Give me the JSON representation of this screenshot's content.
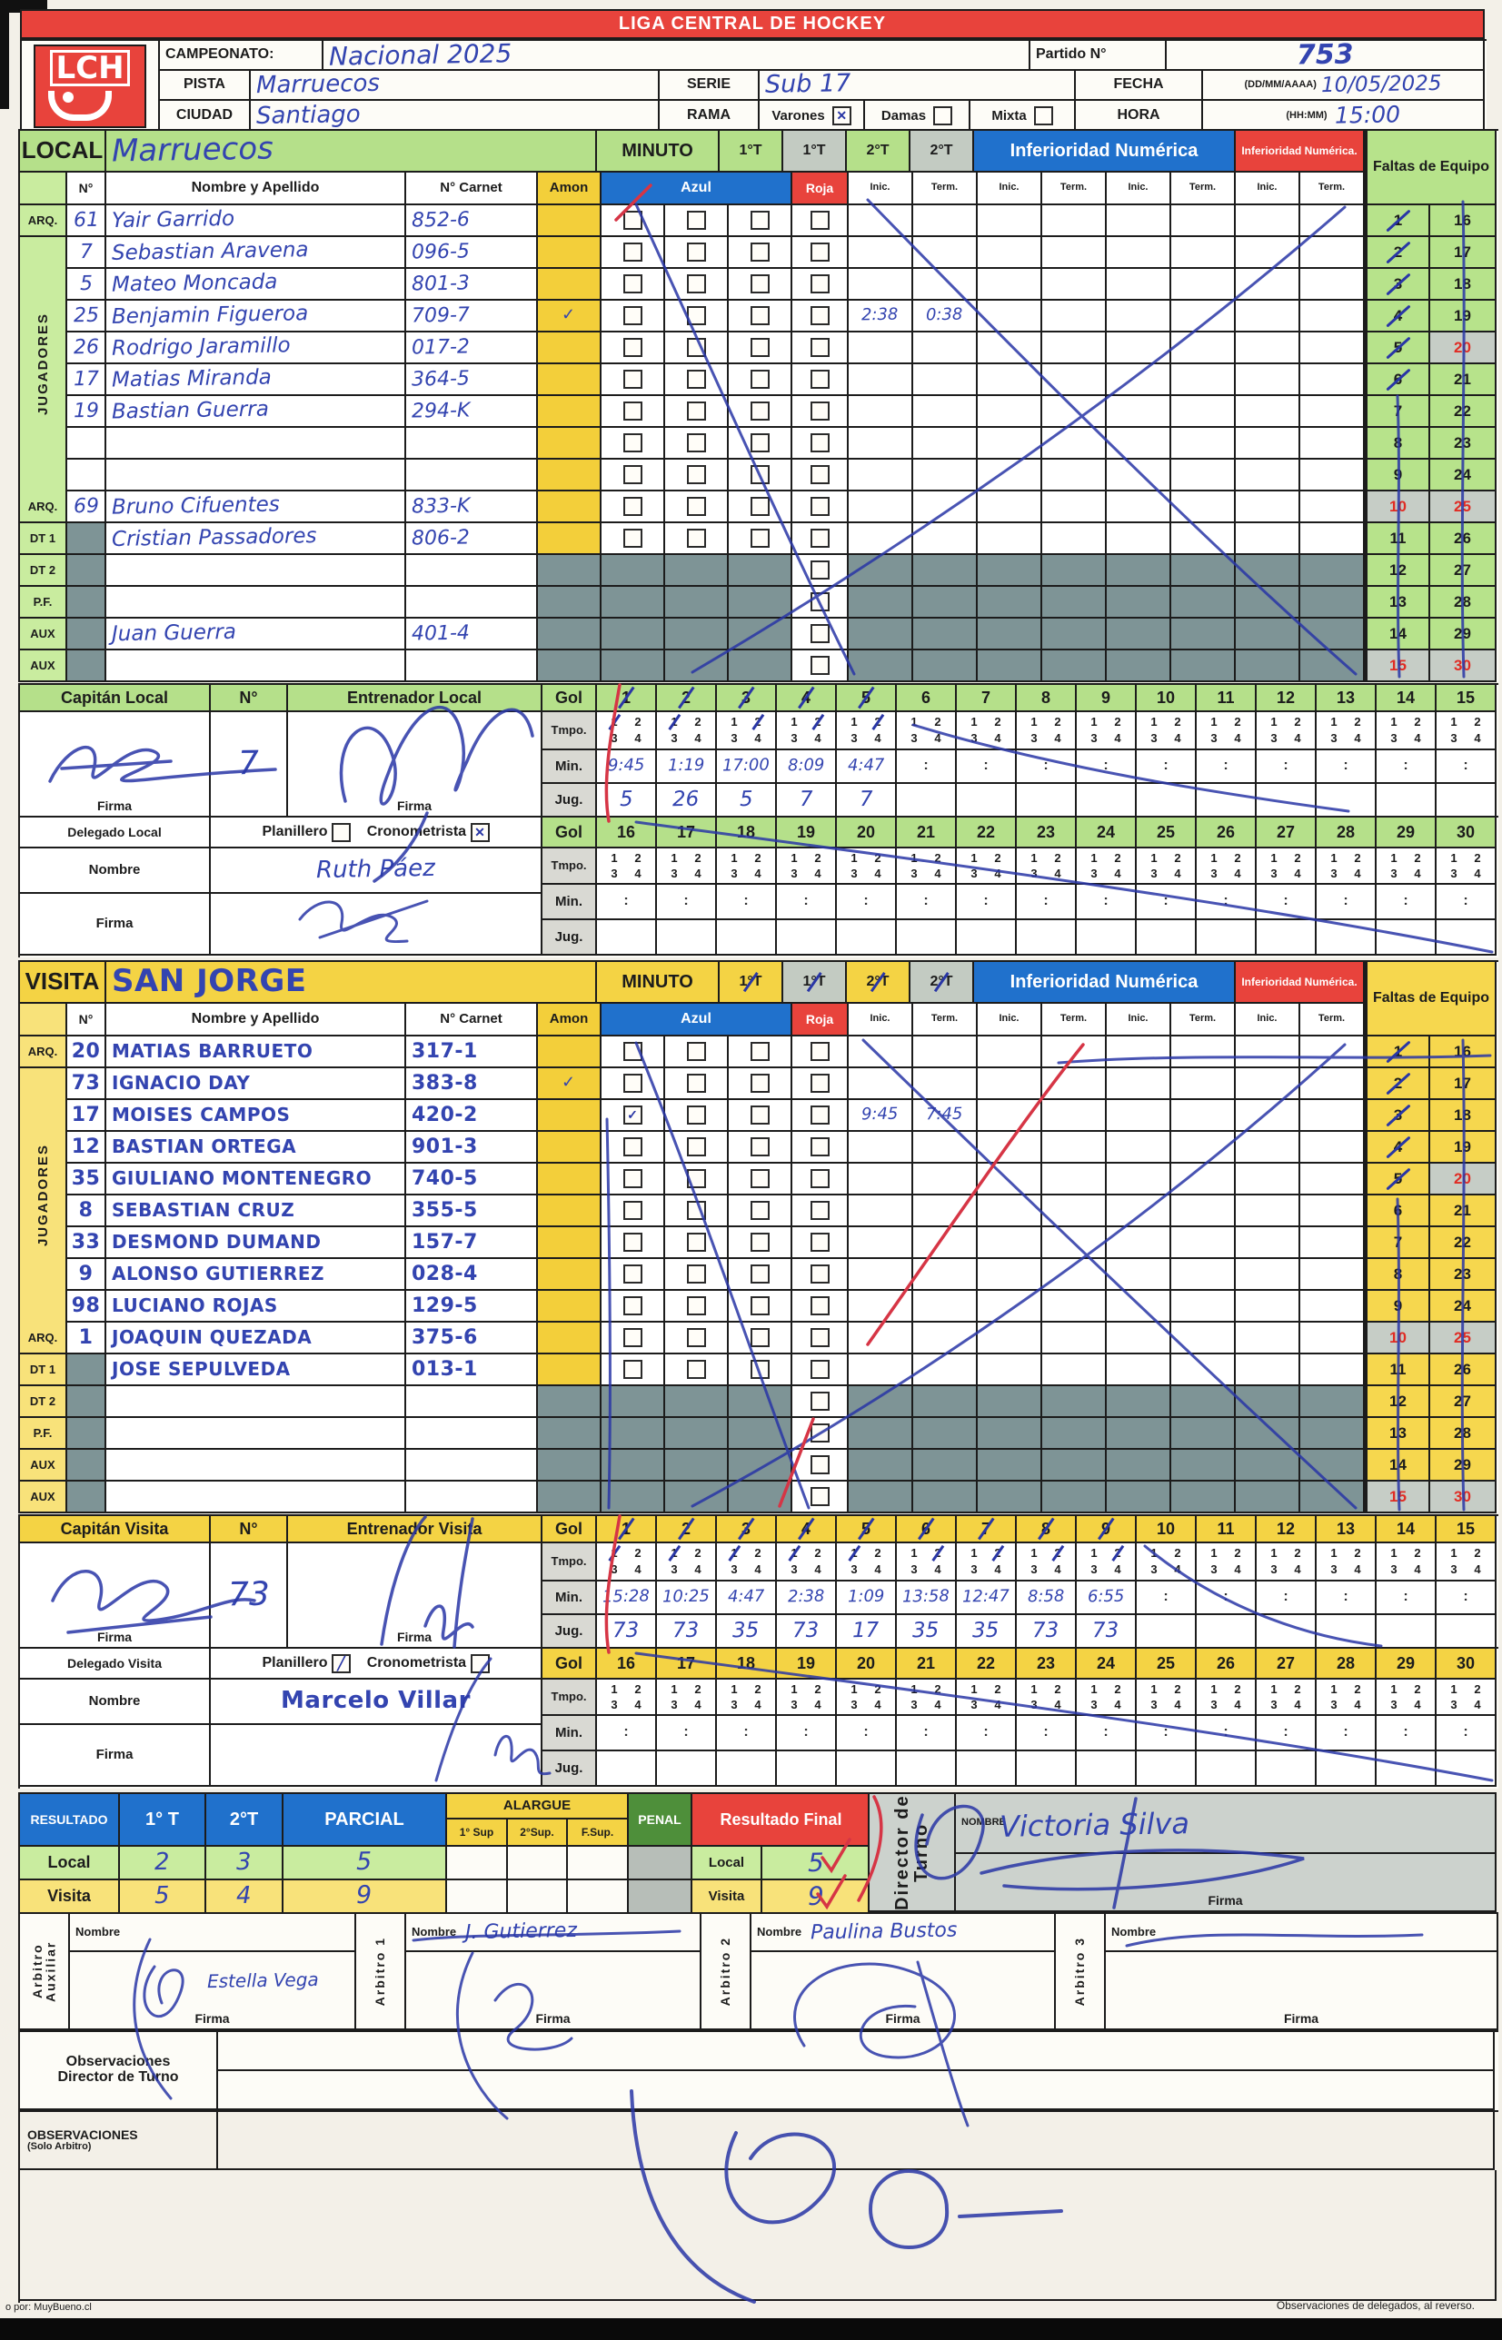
{
  "page_title": "LIGA CENTRAL DE HOCKEY",
  "logo_text": "LCH",
  "header": {
    "campeonato_label": "CAMPEONATO:",
    "campeonato_value": "Nacional 2025",
    "partido_label": "Partido N°",
    "partido_value": "753",
    "pista_label": "PISTA",
    "pista_value": "Marruecos",
    "serie_label": "SERIE",
    "serie_value": "Sub 17",
    "fecha_label": "FECHA",
    "fecha_format": "(DD/MM/AAAA)",
    "fecha_value": "10/05/2025",
    "ciudad_label": "CIUDAD",
    "ciudad_value": "Santiago",
    "rama_label": "RAMA",
    "rama_options": [
      {
        "label": "Varones",
        "checked": true
      },
      {
        "label": "Damas",
        "checked": false
      },
      {
        "label": "Mixta",
        "checked": false
      }
    ],
    "hora_label": "HORA",
    "hora_format": "(HH:MM)",
    "hora_value": "15:00"
  },
  "roster_labels": {
    "minuto": "MINUTO",
    "periods": [
      "1°T",
      "1°T",
      "2°T",
      "2°T"
    ],
    "inferioridad": "Inferioridad Numérica",
    "inferioridad_short": "Inferioridad Numérica.",
    "faltas": "Faltas de Equipo",
    "col_n": "N°",
    "col_nombre": "Nombre y Apellido",
    "col_carnet": "N° Carnet",
    "amon": "Amon",
    "azul": "Azul",
    "roja": "Roja",
    "inic": "Inic.",
    "term": "Term.",
    "jugadores": "JUGADORES",
    "gol": "Gol",
    "tmpo": "Tmpo.",
    "min": "Min.",
    "jug": "Jug.",
    "tmpo_nums": [
      "1",
      "2",
      "3",
      "4"
    ],
    "num_label": "N°",
    "firma": "Firma",
    "nombre": "Nombre",
    "planillero": "Planillero",
    "cronometrista": "Cronometrista",
    "faltas_min": 1,
    "faltas_max": 30
  },
  "local": {
    "label": "LOCAL",
    "team": "Marruecos",
    "capitan_label": "Capitán Local",
    "capitan_num": "7",
    "entrenador_label": "Entrenador Local",
    "delegado_label": "Delegado Local",
    "delegado_nombre": "Ruth Páez",
    "planillero_checked": false,
    "cronometrista_checked": true,
    "faltas_slashed": [
      1,
      2,
      3,
      4,
      5,
      6
    ],
    "players": [
      {
        "rol": "ARQ.",
        "num": "61",
        "nombre": "Yair Garrido",
        "carnet": "852-6"
      },
      {
        "rol": "",
        "num": "7",
        "nombre": "Sebastian Aravena",
        "carnet": "096-5"
      },
      {
        "rol": "",
        "num": "5",
        "nombre": "Mateo Moncada",
        "carnet": "801-3"
      },
      {
        "rol": "",
        "num": "25",
        "nombre": "Benjamin Figueroa",
        "carnet": "709-7",
        "amon_mark": true,
        "inic": "2:38",
        "term": "0:38"
      },
      {
        "rol": "",
        "num": "26",
        "nombre": "Rodrigo Jaramillo",
        "carnet": "017-2"
      },
      {
        "rol": "",
        "num": "17",
        "nombre": "Matias Miranda",
        "carnet": "364-5"
      },
      {
        "rol": "",
        "num": "19",
        "nombre": "Bastian Guerra",
        "carnet": "294-K"
      },
      {
        "rol": "",
        "num": "",
        "nombre": "",
        "carnet": ""
      },
      {
        "rol": "",
        "num": "",
        "nombre": "",
        "carnet": ""
      },
      {
        "rol": "ARQ.",
        "num": "69",
        "nombre": "Bruno Cifuentes",
        "carnet": "833-K"
      },
      {
        "rol": "DT 1",
        "num": "",
        "nombre": "Cristian Passadores",
        "carnet": "806-2",
        "grayNum": true
      },
      {
        "rol": "DT 2",
        "num": "",
        "nombre": "",
        "carnet": "",
        "grayNum": true,
        "gray": true
      },
      {
        "rol": "P.F.",
        "num": "",
        "nombre": "",
        "carnet": "",
        "grayNum": true,
        "gray": true
      },
      {
        "rol": "AUX",
        "num": "",
        "nombre": "Juan Guerra",
        "carnet": "401-4",
        "grayNum": true,
        "gray": true
      },
      {
        "rol": "AUX",
        "num": "",
        "nombre": "",
        "carnet": "",
        "grayNum": true,
        "gray": true
      }
    ],
    "goles": [
      {
        "n": "1",
        "periodo": 1,
        "min": "9:45",
        "jug": "5"
      },
      {
        "n": "2",
        "periodo": 1,
        "min": "1:19",
        "jug": "26"
      },
      {
        "n": "3",
        "periodo": 2,
        "min": "17:00",
        "jug": "5"
      },
      {
        "n": "4",
        "periodo": 2,
        "min": "8:09",
        "jug": "7"
      },
      {
        "n": "5",
        "periodo": 2,
        "min": "4:47",
        "jug": "7"
      }
    ]
  },
  "visita": {
    "label": "VISITA",
    "team": "SAN JORGE",
    "capitan_label": "Capitán Visita",
    "capitan_num": "73",
    "entrenador_label": "Entrenador Visita",
    "delegado_label": "Delegado Visita",
    "delegado_nombre": "Marcelo Villar",
    "planillero_checked": true,
    "cronometrista_checked": false,
    "faltas_slashed": [
      1,
      2,
      3,
      4,
      5
    ],
    "players": [
      {
        "rol": "ARQ.",
        "num": "20",
        "nombre": "MATIAS BARRUETO",
        "carnet": "317-1"
      },
      {
        "rol": "",
        "num": "73",
        "nombre": "IGNACIO DAY",
        "carnet": "383-8",
        "amon_mark": true
      },
      {
        "rol": "",
        "num": "17",
        "nombre": "MOISES CAMPOS",
        "carnet": "420-2",
        "azul": [
          true,
          false,
          false
        ],
        "inic": "9:45",
        "term": "7:45"
      },
      {
        "rol": "",
        "num": "12",
        "nombre": "BASTIAN ORTEGA",
        "carnet": "901-3"
      },
      {
        "rol": "",
        "num": "35",
        "nombre": "GIULIANO MONTENEGRO",
        "carnet": "740-5"
      },
      {
        "rol": "",
        "num": "8",
        "nombre": "SEBASTIAN CRUZ",
        "carnet": "355-5"
      },
      {
        "rol": "",
        "num": "33",
        "nombre": "DESMOND DUMAND",
        "carnet": "157-7"
      },
      {
        "rol": "",
        "num": "9",
        "nombre": "ALONSO GUTIERREZ",
        "carnet": "028-4"
      },
      {
        "rol": "",
        "num": "98",
        "nombre": "LUCIANO ROJAS",
        "carnet": "129-5"
      },
      {
        "rol": "ARQ.",
        "num": "1",
        "nombre": "JOAQUIN QUEZADA",
        "carnet": "375-6"
      },
      {
        "rol": "DT 1",
        "num": "",
        "nombre": "JOSE SEPULVEDA",
        "carnet": "013-1",
        "grayNum": true
      },
      {
        "rol": "DT 2",
        "num": "",
        "nombre": "",
        "carnet": "",
        "grayNum": true,
        "gray": true
      },
      {
        "rol": "P.F.",
        "num": "",
        "nombre": "",
        "carnet": "",
        "grayNum": true,
        "gray": true
      },
      {
        "rol": "AUX",
        "num": "",
        "nombre": "",
        "carnet": "",
        "grayNum": true,
        "gray": true
      },
      {
        "rol": "AUX",
        "num": "",
        "nombre": "",
        "carnet": "",
        "grayNum": true,
        "gray": true
      }
    ],
    "goles": [
      {
        "n": "1",
        "periodo": 1,
        "min": "15:28",
        "jug": "73"
      },
      {
        "n": "2",
        "periodo": 1,
        "min": "10:25",
        "jug": "73"
      },
      {
        "n": "3",
        "periodo": 1,
        "min": "4:47",
        "jug": "35"
      },
      {
        "n": "4",
        "periodo": 1,
        "min": "2:38",
        "jug": "73"
      },
      {
        "n": "5",
        "periodo": 1,
        "min": "1:09",
        "jug": "17"
      },
      {
        "n": "6",
        "periodo": 2,
        "min": "13:58",
        "jug": "35"
      },
      {
        "n": "7",
        "periodo": 2,
        "min": "12:47",
        "jug": "35"
      },
      {
        "n": "8",
        "periodo": 2,
        "min": "8:58",
        "jug": "73"
      },
      {
        "n": "9",
        "periodo": 2,
        "min": "6:55",
        "jug": "73"
      }
    ]
  },
  "resultado": {
    "label": "RESULTADO",
    "t1": "1° T",
    "t2": "2°T",
    "parcial": "PARCIAL",
    "alargue": "ALARGUE",
    "sup1": "1° Sup",
    "sup2": "2°Sup.",
    "fsup": "F.Sup.",
    "penal": "PENAL",
    "final_label": "Resultado Final",
    "local_label": "Local",
    "visita_label": "Visita",
    "local_values": [
      "2",
      "3",
      "5"
    ],
    "visita_values": [
      "5",
      "4",
      "9"
    ],
    "final_local": "5",
    "final_visita": "9"
  },
  "director": {
    "label": "Director de Turno",
    "nombre_label": "NOMBRE",
    "firma_label": "Firma",
    "nombre": "Victoria Silva"
  },
  "arbitros": [
    {
      "label": "Arbitro Auxiliar",
      "nombre_label": "Nombre",
      "firma_label": "Firma",
      "nombre": "",
      "firma_nombre": "Estella Vega"
    },
    {
      "label": "Arbitro 1",
      "nombre_label": "Nombre",
      "firma_label": "Firma",
      "nombre": "J. Gutierrez",
      "firma_nombre": ""
    },
    {
      "label": "Arbitro 2",
      "nombre_label": "Nombre",
      "firma_label": "Firma",
      "nombre": "Paulina Bustos",
      "firma_nombre": ""
    },
    {
      "label": "Arbitro 3",
      "nombre_label": "Nombre",
      "firma_label": "Firma",
      "nombre": "",
      "firma_nombre": ""
    }
  ],
  "observaciones": {
    "dt_line1": "Observaciones",
    "dt_line2": "Director de Turno",
    "arb_line1": "OBSERVACIONES",
    "arb_line2": "(Solo Arbitro)"
  },
  "footer": {
    "left": "o por: MuyBueno.cl",
    "right": "Observaciones de delegados, al reverso."
  },
  "colors": {
    "title_red": "#e8433c",
    "azul_blue": "#2071cc",
    "local_green": "#b5e08a",
    "visita_yellow": "#f4d344",
    "gray_block": "#7e9496",
    "red_number": "#e02c24"
  }
}
